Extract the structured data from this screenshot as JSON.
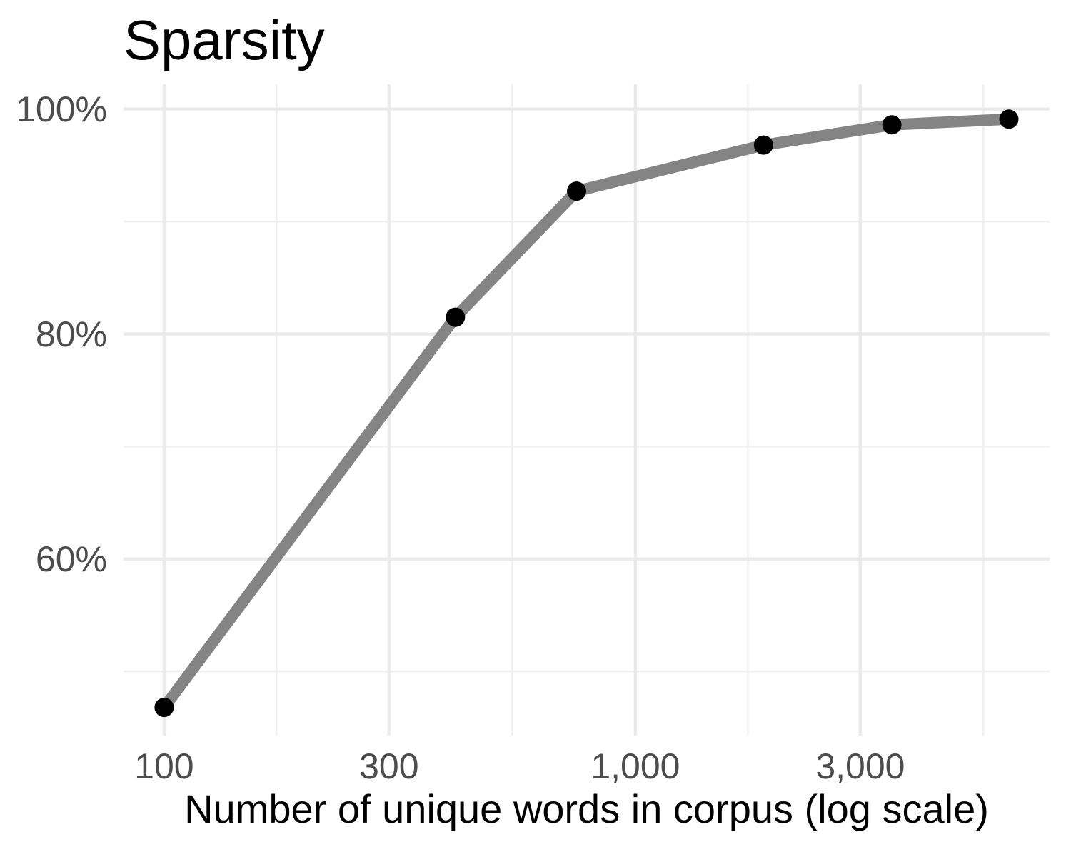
{
  "chart_data": {
    "type": "line",
    "title": "Sparsity",
    "xlabel": "Number of unique words in corpus (log scale)",
    "ylabel": "",
    "x_scale": "log10",
    "series": [
      {
        "name": "sparsity",
        "x": [
          100,
          415,
          750,
          1870,
          3500,
          6200
        ],
        "y_percent": [
          46.8,
          81.5,
          92.7,
          96.8,
          98.6,
          99.1
        ]
      }
    ],
    "xlim": [
      82,
      7565
    ],
    "ylim_percent": [
      44.3,
      102.2
    ],
    "x_ticks": [
      {
        "value": 100,
        "label": "100"
      },
      {
        "value": 300,
        "label": "300"
      },
      {
        "value": 1000,
        "label": "1,000"
      },
      {
        "value": 3000,
        "label": "3,000"
      }
    ],
    "y_ticks": [
      {
        "value": 60,
        "label": "60%"
      },
      {
        "value": 80,
        "label": "80%"
      },
      {
        "value": 100,
        "label": "100%"
      }
    ],
    "x_minor_gridlines": [
      173.2,
      547.7,
      1732,
      5477
    ],
    "y_minor_gridlines": [
      50,
      70,
      90
    ],
    "grid": true,
    "legend": "none",
    "colors": {
      "line": "#848484",
      "point": "#000000",
      "grid_major": "#EBEBEB",
      "grid_minor": "#F0F0F0",
      "tick_text": "#4D4D4D",
      "title_text": "#000000",
      "axis_label_text": "#000000",
      "background": "#FFFFFF"
    }
  }
}
